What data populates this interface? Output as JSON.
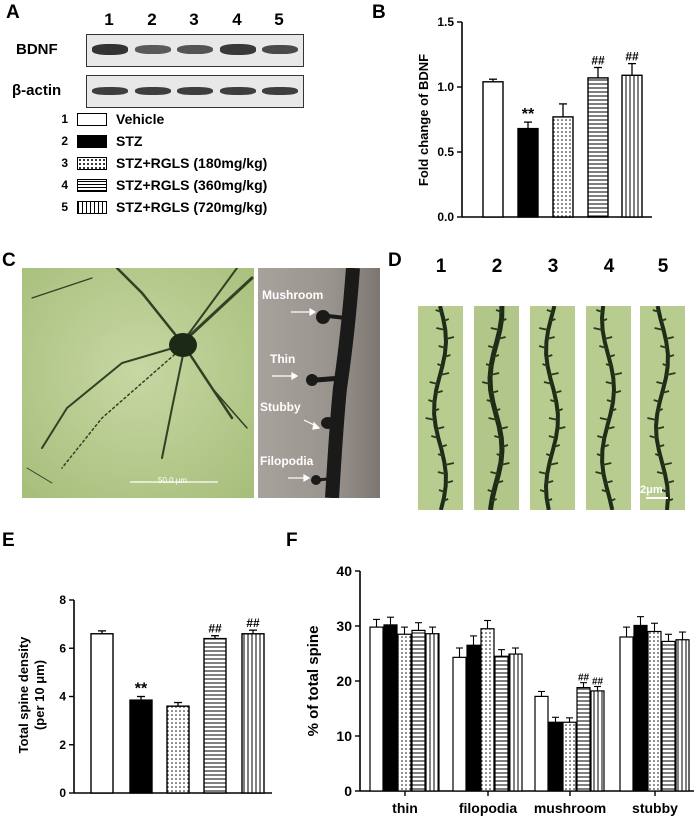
{
  "panels": {
    "A": "A",
    "B": "B",
    "C": "C",
    "D": "D",
    "E": "E",
    "F": "F"
  },
  "blot": {
    "lanes": [
      "1",
      "2",
      "3",
      "4",
      "5"
    ],
    "rows": [
      {
        "label": "BDNF",
        "band_intensity": [
          0.9,
          0.55,
          0.6,
          0.85,
          0.7
        ]
      },
      {
        "label": "β-actin",
        "band_intensity": [
          0.8,
          0.8,
          0.8,
          0.8,
          0.8
        ]
      }
    ]
  },
  "legend": [
    {
      "num": "1",
      "label": "Vehicle",
      "pattern": "white"
    },
    {
      "num": "2",
      "label": "STZ",
      "pattern": "black"
    },
    {
      "num": "3",
      "label": "STZ+RGLS (180mg/kg)",
      "pattern": "dots"
    },
    {
      "num": "4",
      "label": "STZ+RGLS (360mg/kg)",
      "pattern": "hlines"
    },
    {
      "num": "5",
      "label": "STZ+RGLS (720mg/kg)",
      "pattern": "vlines"
    }
  ],
  "micrograph_c": {
    "scale_bar": "50.0 μm",
    "spine_labels": [
      "Mushroom",
      "Thin",
      "Stubby",
      "Filopodia"
    ]
  },
  "micrograph_d": {
    "lanes": [
      "1",
      "2",
      "3",
      "4",
      "5"
    ],
    "scale_bar": "2μm"
  },
  "chart_data": [
    {
      "panel": "B",
      "type": "bar",
      "ylabel": "Fold change of BDNF",
      "ylim": [
        0,
        1.5
      ],
      "yticks": [
        "0.0",
        "0.5",
        "1.0",
        "1.5"
      ],
      "values": [
        1.04,
        0.68,
        0.77,
        1.07,
        1.09
      ],
      "errors": [
        0.02,
        0.05,
        0.1,
        0.08,
        0.09
      ],
      "patterns": [
        "white",
        "black",
        "dots",
        "hlines",
        "vlines"
      ],
      "annotations": [
        "",
        "**",
        "",
        "##",
        "##"
      ]
    },
    {
      "panel": "E",
      "type": "bar",
      "ylabel": "Total spine density (per 10 μm)",
      "ylabel_lines": [
        "Total spine density",
        "(per 10 μm)"
      ],
      "ylim": [
        0,
        8
      ],
      "yticks": [
        "0",
        "2",
        "4",
        "6",
        "8"
      ],
      "values": [
        6.6,
        3.85,
        3.6,
        6.4,
        6.6
      ],
      "errors": [
        0.12,
        0.15,
        0.15,
        0.12,
        0.15
      ],
      "patterns": [
        "white",
        "black",
        "dots",
        "hlines",
        "vlines"
      ],
      "annotations": [
        "",
        "**",
        "",
        "##",
        "##"
      ]
    },
    {
      "panel": "F",
      "type": "bar",
      "ylabel": "% of total spine",
      "ylim": [
        0,
        40
      ],
      "yticks": [
        "0",
        "10",
        "20",
        "30",
        "40"
      ],
      "categories": [
        "thin",
        "filopodia",
        "mushroom",
        "stubby"
      ],
      "patterns": [
        "white",
        "black",
        "dots",
        "hlines",
        "vlines"
      ],
      "series": [
        {
          "values": [
            29.8,
            24.3,
            17.2,
            28.0
          ],
          "errors": [
            1.4,
            1.7,
            0.9,
            1.8
          ]
        },
        {
          "values": [
            30.2,
            26.5,
            12.5,
            30.1
          ],
          "errors": [
            1.4,
            1.7,
            0.9,
            1.6
          ]
        },
        {
          "values": [
            28.5,
            29.5,
            12.5,
            29.0
          ],
          "errors": [
            1.3,
            1.5,
            0.8,
            1.5
          ]
        },
        {
          "values": [
            29.2,
            24.5,
            18.8,
            27.2
          ],
          "errors": [
            1.4,
            1.2,
            0.9,
            1.3
          ]
        },
        {
          "values": [
            28.6,
            24.9,
            18.2,
            27.5
          ],
          "errors": [
            1.2,
            1.1,
            0.8,
            1.4
          ]
        }
      ],
      "annotations": [
        [
          "",
          "",
          "",
          ""
        ],
        [
          "",
          "",
          "**",
          ""
        ],
        [
          "",
          "",
          "",
          ""
        ],
        [
          "",
          "",
          "##",
          ""
        ],
        [
          "",
          "",
          "##",
          ""
        ]
      ]
    }
  ]
}
